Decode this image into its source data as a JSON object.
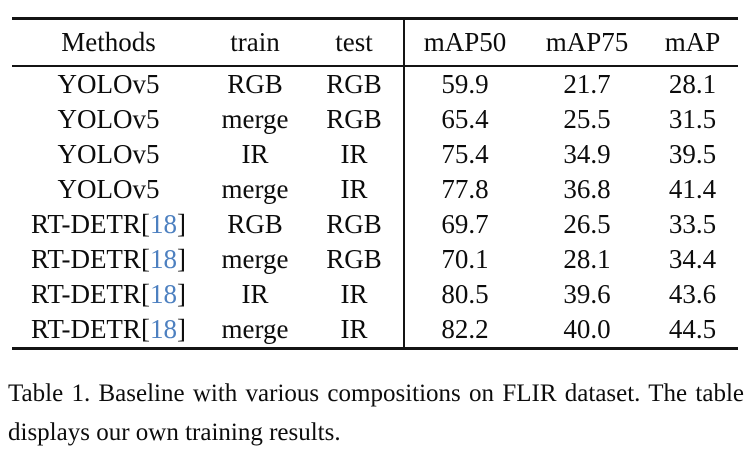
{
  "colors": {
    "rule": "#141414",
    "text": "#0c0c0c",
    "citation_blue": "#4d80c0"
  },
  "table": {
    "header": {
      "methods": "Methods",
      "train": "train",
      "test": "test",
      "map50": "mAP50",
      "map75": "mAP75",
      "map": "mAP"
    },
    "rows": [
      {
        "method": "YOLOv5",
        "cite": "",
        "train": "RGB",
        "test": "RGB",
        "map50": "59.9",
        "map75": "21.7",
        "map": "28.1"
      },
      {
        "method": "YOLOv5",
        "cite": "",
        "train": "merge",
        "test": "RGB",
        "map50": "65.4",
        "map75": "25.5",
        "map": "31.5"
      },
      {
        "method": "YOLOv5",
        "cite": "",
        "train": "IR",
        "test": "IR",
        "map50": "75.4",
        "map75": "34.9",
        "map": "39.5"
      },
      {
        "method": "YOLOv5",
        "cite": "",
        "train": "merge",
        "test": "IR",
        "map50": "77.8",
        "map75": "36.8",
        "map": "41.4"
      },
      {
        "method": "RT-DETR",
        "cite": "18",
        "train": "RGB",
        "test": "RGB",
        "map50": "69.7",
        "map75": "26.5",
        "map": "33.5"
      },
      {
        "method": "RT-DETR",
        "cite": "18",
        "train": "merge",
        "test": "RGB",
        "map50": "70.1",
        "map75": "28.1",
        "map": "34.4"
      },
      {
        "method": "RT-DETR",
        "cite": "18",
        "train": "IR",
        "test": "IR",
        "map50": "80.5",
        "map75": "39.6",
        "map": "43.6"
      },
      {
        "method": "RT-DETR",
        "cite": "18",
        "train": "merge",
        "test": "IR",
        "map50": "82.2",
        "map75": "40.0",
        "map": "44.5"
      }
    ]
  },
  "caption": "Table 1. Baseline with various compositions on FLIR dataset. The table displays our own training results."
}
